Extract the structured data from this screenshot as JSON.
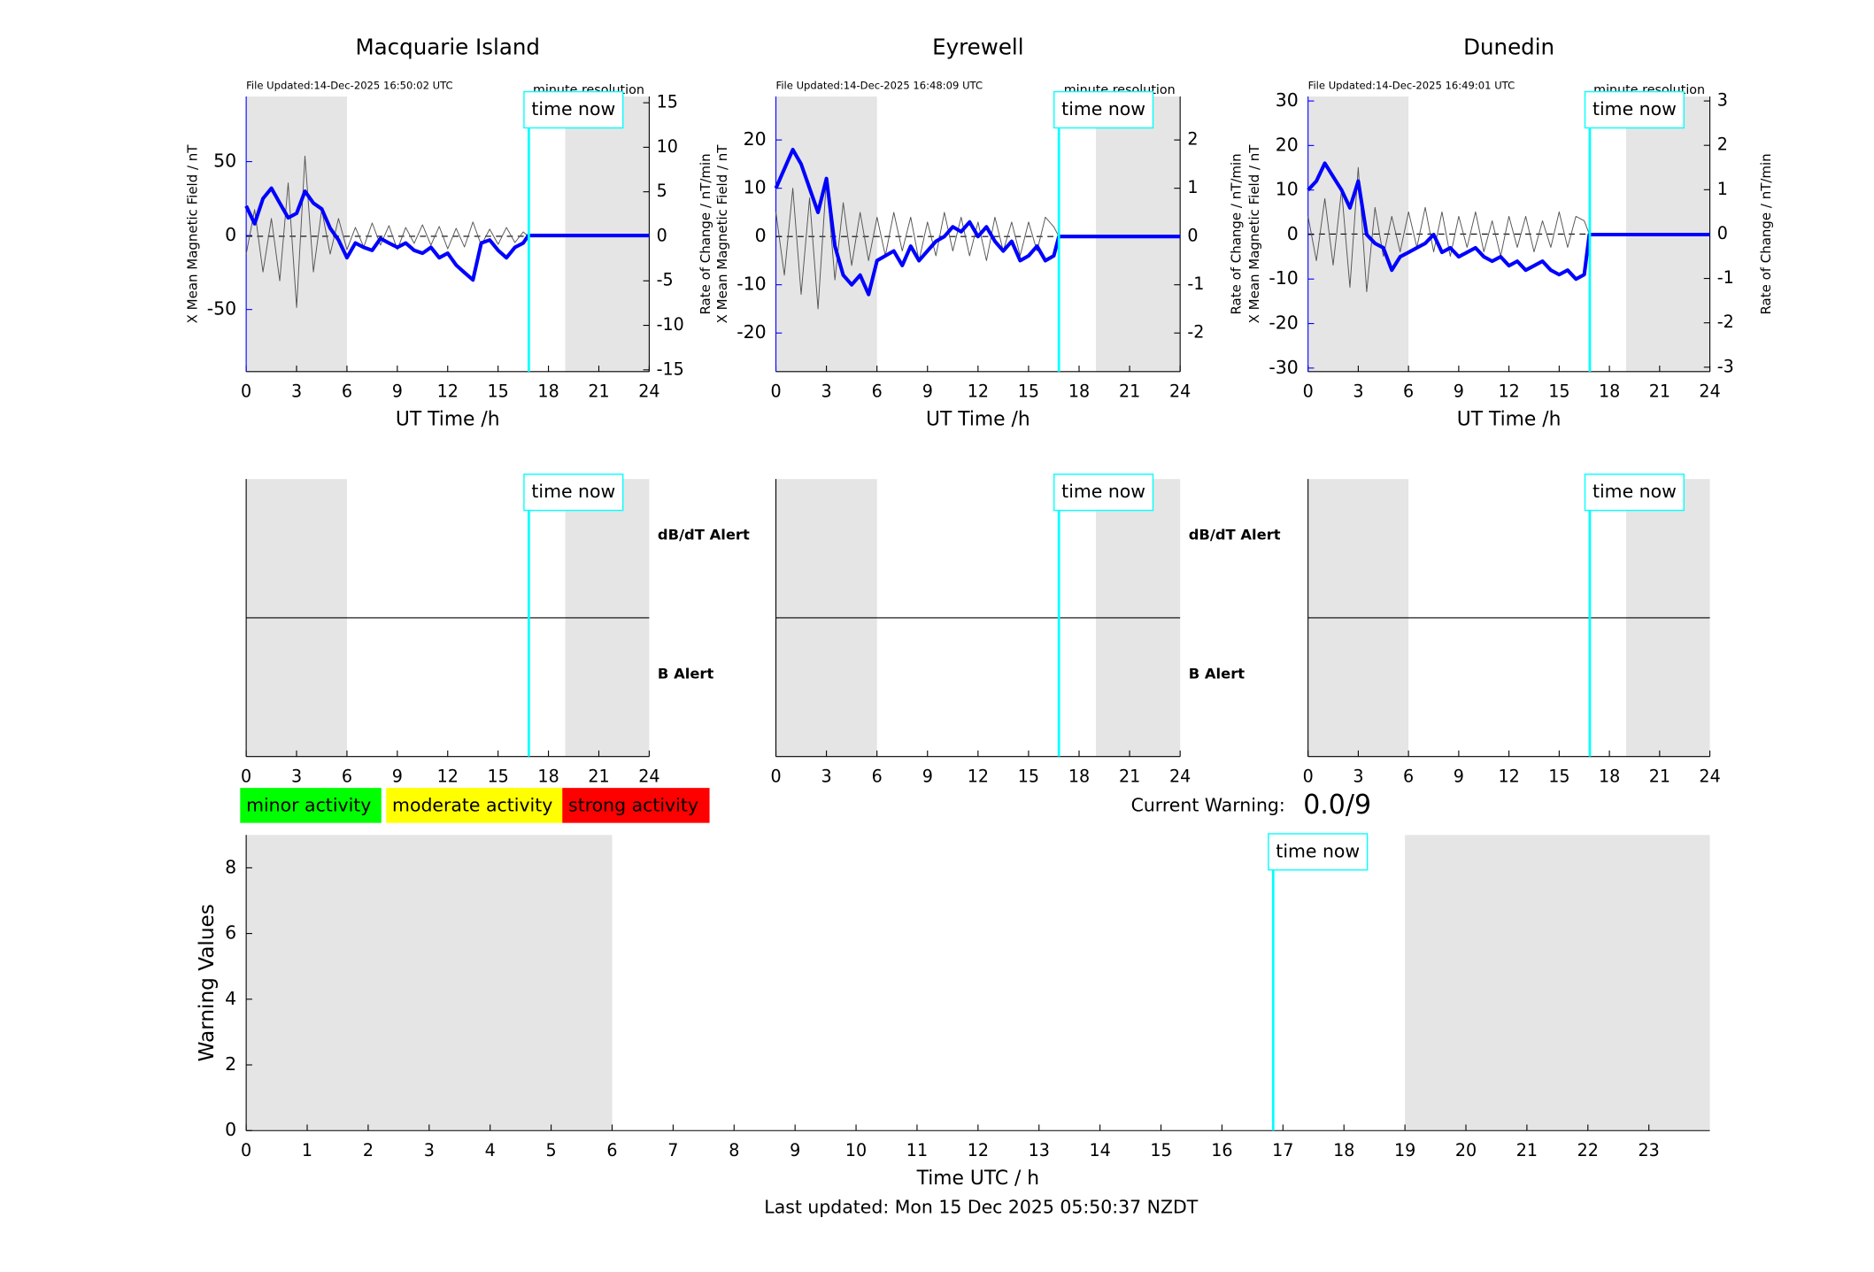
{
  "chart_data": [
    {
      "type": "line",
      "title": "Macquarie Island",
      "file_updated": "File Updated:14-Dec-2025 16:50:02 UTC",
      "resolution": "minute resolution",
      "xlabel": "UT Time /h",
      "ylabel": "X Mean Magnetic Field / nT",
      "y2label": "Rate of Change / nT/min",
      "x": [
        0,
        0.5,
        1,
        1.5,
        2,
        2.5,
        3,
        3.5,
        4,
        4.5,
        5,
        5.5,
        6,
        6.5,
        7,
        7.5,
        8,
        8.5,
        9,
        9.5,
        10,
        10.5,
        11,
        11.5,
        12,
        12.5,
        13,
        13.5,
        14,
        14.5,
        15,
        15.5,
        16,
        16.5,
        16.8,
        24
      ],
      "series": [
        {
          "color": "#0000ff",
          "values": [
            20,
            8,
            25,
            32,
            22,
            12,
            15,
            30,
            22,
            18,
            5,
            -3,
            -15,
            -5,
            -8,
            -10,
            -2,
            -5,
            -8,
            -5,
            -10,
            -12,
            -8,
            -15,
            -12,
            -20,
            -25,
            -30,
            -5,
            -3,
            -10,
            -15,
            -8,
            -5,
            0,
            0
          ]
        },
        {
          "color": "#555555",
          "axis": "y2",
          "values": [
            -2,
            3,
            -4,
            2,
            -5,
            6,
            -8,
            9,
            -4,
            3,
            -2,
            2,
            -1.5,
            1,
            -1.2,
            1.5,
            -1,
            1.2,
            -1.5,
            1,
            -0.8,
            1.3,
            -1,
            1.1,
            -1.4,
            0.9,
            -1.2,
            1.6,
            -1,
            0.8,
            -0.9,
            1,
            -0.7,
            0.5,
            0,
            null
          ]
        }
      ],
      "xlim": [
        0,
        24
      ],
      "xticks": [
        0,
        3,
        6,
        9,
        12,
        15,
        18,
        21,
        24
      ],
      "ylim": [
        -92,
        94
      ],
      "yticks": [
        -50,
        0,
        50
      ],
      "y2lim": [
        -15.2,
        15.7
      ],
      "y2ticks": [
        -15,
        -10,
        -5,
        0,
        5,
        10,
        15
      ],
      "shaded": [
        [
          0,
          6
        ],
        [
          19,
          24
        ]
      ],
      "shade_color": "#e5e5e5",
      "time_now": {
        "value": 16.83,
        "label": "time now"
      },
      "time_color": "#00ffff"
    },
    {
      "type": "line",
      "title": "Eyrewell",
      "file_updated": "File Updated:14-Dec-2025 16:48:09 UTC",
      "resolution": "minute resolution",
      "xlabel": "UT Time /h",
      "ylabel": "X Mean Magnetic Field / nT",
      "y2label": "Rate of Change / nT/min",
      "x": [
        0,
        0.5,
        1,
        1.5,
        2,
        2.5,
        3,
        3.5,
        4,
        4.5,
        5,
        5.5,
        6,
        6.5,
        7,
        7.5,
        8,
        8.5,
        9,
        9.5,
        10,
        10.5,
        11,
        11.5,
        12,
        12.5,
        13,
        13.5,
        14,
        14.5,
        15,
        15.5,
        16,
        16.5,
        16.8,
        24
      ],
      "series": [
        {
          "color": "#0000ff",
          "values": [
            10,
            14,
            18,
            15,
            10,
            5,
            12,
            -2,
            -8,
            -10,
            -8,
            -12,
            -5,
            -4,
            -3,
            -6,
            -2,
            -5,
            -3,
            -1,
            0,
            2,
            1,
            3,
            0,
            2,
            -1,
            -3,
            -1,
            -5,
            -4,
            -2,
            -5,
            -4,
            0,
            0
          ]
        },
        {
          "color": "#555555",
          "axis": "y2",
          "values": [
            0.5,
            -0.8,
            1,
            -1.2,
            0.8,
            -1.5,
            1.2,
            -0.9,
            0.7,
            -0.6,
            0.5,
            -0.5,
            0.4,
            -0.4,
            0.5,
            -0.3,
            0.4,
            -0.5,
            0.3,
            -0.4,
            0.5,
            -0.3,
            0.4,
            -0.4,
            0.3,
            -0.5,
            0.4,
            -0.3,
            0.3,
            -0.4,
            0.3,
            -0.3,
            0.4,
            0.2,
            0,
            null
          ]
        }
      ],
      "xlim": [
        0,
        24
      ],
      "xticks": [
        0,
        3,
        6,
        9,
        12,
        15,
        18,
        21,
        24
      ],
      "ylim": [
        -28,
        29
      ],
      "yticks": [
        -20,
        -10,
        0,
        10,
        20
      ],
      "y2lim": [
        -2.8,
        2.9
      ],
      "y2ticks": [
        -2,
        -1,
        0,
        1,
        2
      ],
      "shaded": [
        [
          0,
          6
        ],
        [
          19,
          24
        ]
      ],
      "shade_color": "#e5e5e5",
      "time_now": {
        "value": 16.8,
        "label": "time now"
      },
      "time_color": "#00ffff"
    },
    {
      "type": "line",
      "title": "Dunedin",
      "file_updated": "File Updated:14-Dec-2025 16:49:01 UTC",
      "resolution": "minute resolution",
      "xlabel": "UT Time /h",
      "ylabel": "X Mean Magnetic Field / nT",
      "y2label": "Rate of Change / nT/min",
      "x": [
        0,
        0.5,
        1,
        1.5,
        2,
        2.5,
        3,
        3.5,
        4,
        4.5,
        5,
        5.5,
        6,
        6.5,
        7,
        7.5,
        8,
        8.5,
        9,
        9.5,
        10,
        10.5,
        11,
        11.5,
        12,
        12.5,
        13,
        13.5,
        14,
        14.5,
        15,
        15.5,
        16,
        16.5,
        16.8,
        24
      ],
      "series": [
        {
          "color": "#0000ff",
          "values": [
            10,
            12,
            16,
            13,
            10,
            6,
            12,
            0,
            -2,
            -3,
            -8,
            -5,
            -4,
            -3,
            -2,
            0,
            -4,
            -3,
            -5,
            -4,
            -3,
            -5,
            -6,
            -5,
            -7,
            -6,
            -8,
            -7,
            -6,
            -8,
            -9,
            -8,
            -10,
            -9,
            0,
            0
          ]
        },
        {
          "color": "#555555",
          "axis": "y2",
          "values": [
            0.4,
            -0.6,
            0.8,
            -0.7,
            1,
            -1.2,
            1.5,
            -1.3,
            0.6,
            -0.5,
            0.4,
            -0.4,
            0.5,
            -0.3,
            0.6,
            -0.4,
            0.5,
            -0.5,
            0.4,
            -0.3,
            0.5,
            -0.4,
            0.3,
            -0.5,
            0.4,
            -0.3,
            0.4,
            -0.4,
            0.3,
            -0.3,
            0.5,
            -0.3,
            0.4,
            0.3,
            0,
            null
          ]
        }
      ],
      "xlim": [
        0,
        24
      ],
      "xticks": [
        0,
        3,
        6,
        9,
        12,
        15,
        18,
        21,
        24
      ],
      "ylim": [
        -30.8,
        31
      ],
      "yticks": [
        -30,
        -20,
        -10,
        0,
        10,
        20,
        30
      ],
      "y2lim": [
        -3.1,
        3.1
      ],
      "y2ticks": [
        -3,
        -2,
        -1,
        0,
        1,
        2,
        3
      ],
      "shaded": [
        [
          0,
          6
        ],
        [
          19,
          24
        ]
      ],
      "shade_color": "#e5e5e5",
      "time_now": {
        "value": 16.83,
        "label": "time now"
      },
      "time_color": "#00ffff"
    },
    {
      "type": "alert",
      "xlim": [
        0,
        24
      ],
      "xticks": [
        0,
        3,
        6,
        9,
        12,
        15,
        18,
        21,
        24
      ],
      "shaded": [
        [
          0,
          6
        ],
        [
          19,
          24
        ]
      ],
      "shade_color": "#e5e5e5",
      "time_now": {
        "value": 16.83,
        "label": "time now"
      },
      "time_color": "#00ffff",
      "upper_label": "dB/dT Alert",
      "lower_label": "B Alert",
      "lower_color": "#0000ff"
    },
    {
      "type": "alert",
      "xlim": [
        0,
        24
      ],
      "xticks": [
        0,
        3,
        6,
        9,
        12,
        15,
        18,
        21,
        24
      ],
      "shaded": [
        [
          0,
          6
        ],
        [
          19,
          24
        ]
      ],
      "shade_color": "#e5e5e5",
      "time_now": {
        "value": 16.8,
        "label": "time now"
      },
      "time_color": "#00ffff",
      "upper_label": "dB/dT Alert",
      "lower_label": "B Alert",
      "lower_color": "#0000ff"
    },
    {
      "type": "alert",
      "xlim": [
        0,
        24
      ],
      "xticks": [
        0,
        3,
        6,
        9,
        12,
        15,
        18,
        21,
        24
      ],
      "shaded": [
        [
          0,
          6
        ],
        [
          19,
          24
        ]
      ],
      "shade_color": "#e5e5e5",
      "time_now": {
        "value": 16.83,
        "label": "time now"
      },
      "time_color": "#00ffff"
    },
    {
      "type": "warning",
      "xlabel": "Time UTC / h",
      "ylabel": "Warning Values",
      "xlim": [
        0,
        24
      ],
      "xticks": [
        0,
        1,
        2,
        3,
        4,
        5,
        6,
        7,
        8,
        9,
        10,
        11,
        12,
        13,
        14,
        15,
        16,
        17,
        18,
        19,
        20,
        21,
        22,
        23
      ],
      "ylim": [
        0,
        9
      ],
      "yticks": [
        0,
        2,
        4,
        6,
        8
      ],
      "shaded": [
        [
          0,
          6
        ],
        [
          19,
          24
        ]
      ],
      "shade_color": "#e5e5e5",
      "time_now": {
        "value": 16.84,
        "label": "time now"
      },
      "time_color": "#00ffff"
    }
  ],
  "legend": [
    {
      "label": "minor activity",
      "color": "#00ff00"
    },
    {
      "label": "moderate activity",
      "color": "#ffff00"
    },
    {
      "label": "strong activity",
      "color": "#ff0000"
    }
  ],
  "current_warning_label": "Current Warning:",
  "current_warning": "0.0/9",
  "last_updated": "Last updated: Mon 15 Dec 2025 05:50:37 NZDT"
}
